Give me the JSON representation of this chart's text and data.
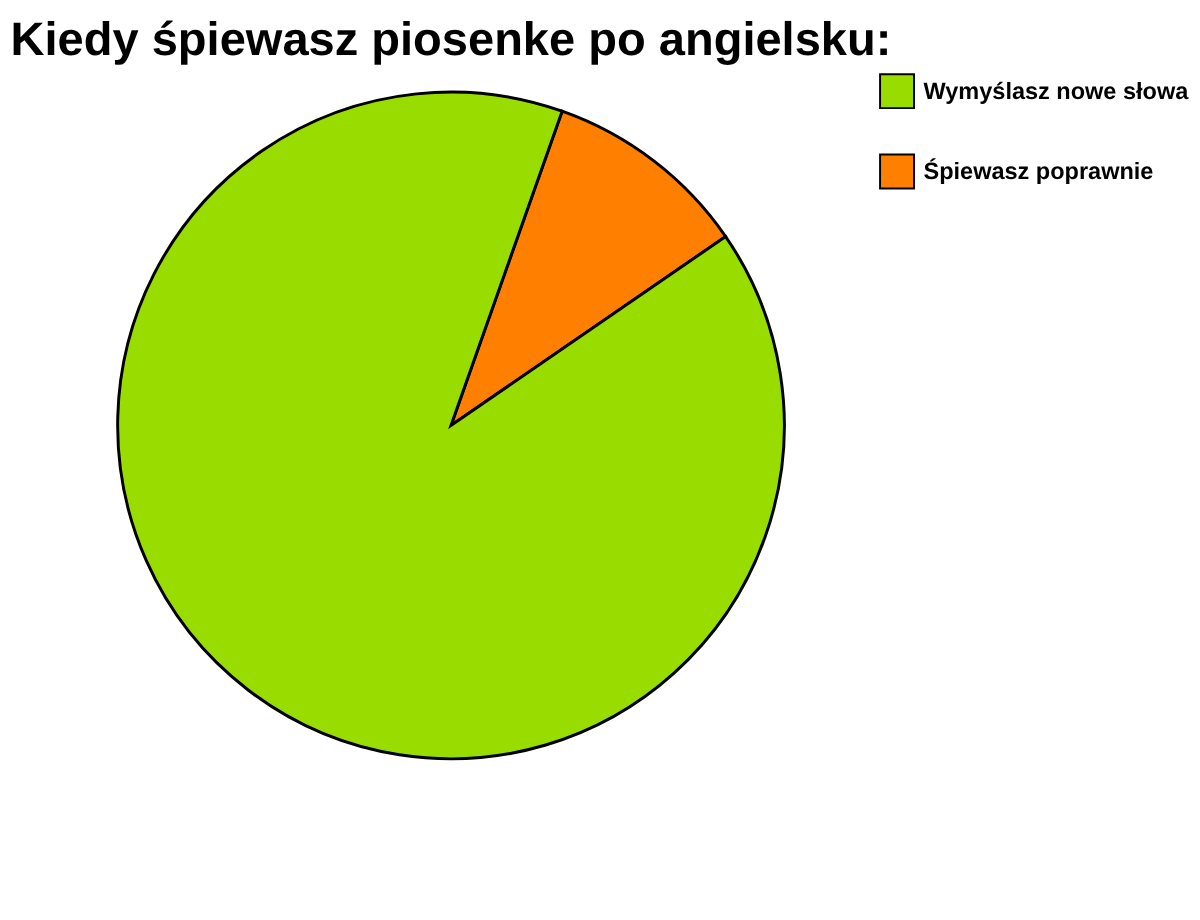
{
  "chart_data": {
    "type": "pie",
    "title": "Kiedy śpiewasz piosenke po angielsku:",
    "categories": [
      "Wymyślasz nowe słowa",
      "Śpiewasz poprawnie"
    ],
    "values": [
      90,
      10
    ],
    "colors": [
      "#99dd00",
      "#ff8000"
    ],
    "legend": "right"
  }
}
